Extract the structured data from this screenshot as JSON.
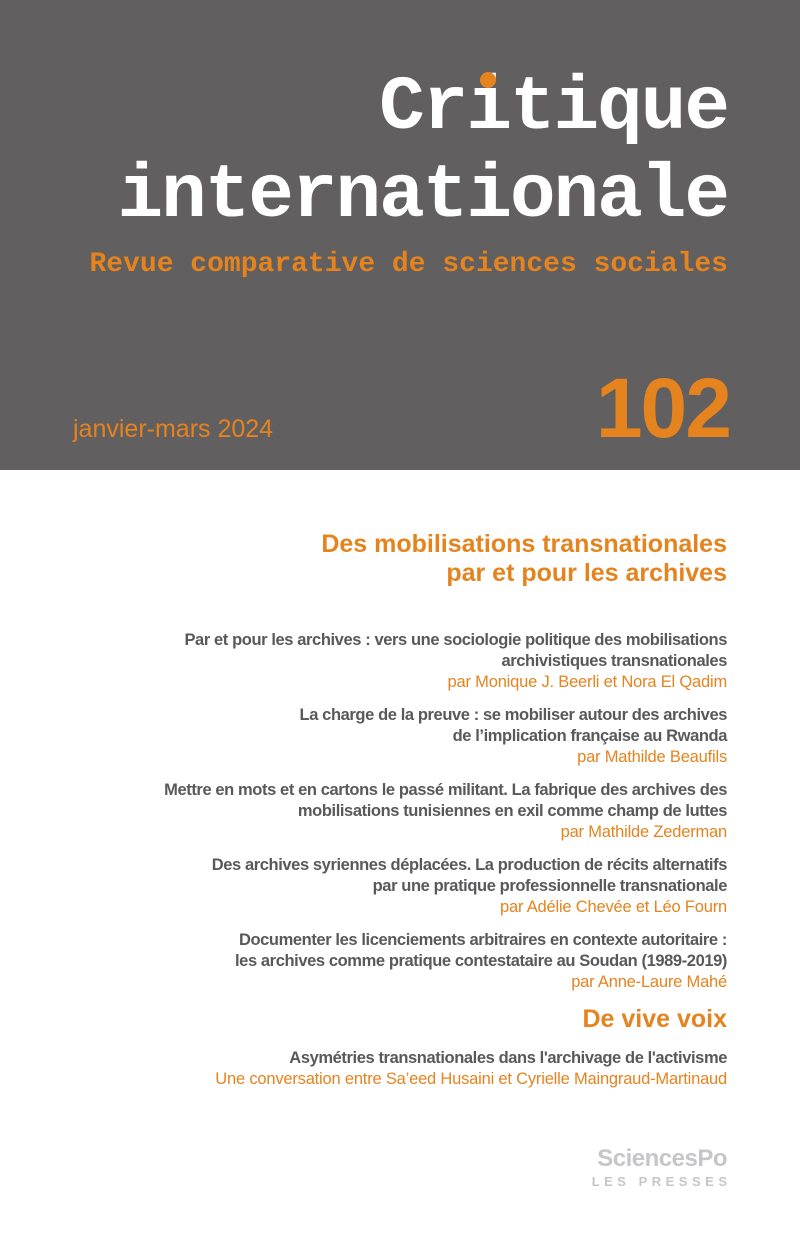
{
  "header": {
    "title": "Critique internationale",
    "title_line1_parts": {
      "pre": "Cr",
      "i": "i",
      "post": "tique"
    },
    "title_line2": "internationale",
    "subtitle": "Revue comparative de sciences sociales",
    "date": "janvier-mars 2024",
    "issue_number": "102",
    "colors": {
      "background": "#615f60",
      "accent": "#e5831e",
      "title": "#ffffff"
    }
  },
  "toc": {
    "dossier_title_lines": [
      "Des mobilisations transnationales",
      "par et pour les archives"
    ],
    "entries": [
      {
        "title_lines": [
          "Par et pour les archives : vers une sociologie politique des mobilisations",
          "archivistiques transnationales"
        ],
        "author": "par Monique J. Beerli et Nora El Qadim"
      },
      {
        "title_lines": [
          "La charge de la preuve : se mobiliser autour des archives",
          "de l’implication française au Rwanda"
        ],
        "author": "par Mathilde Beaufils"
      },
      {
        "title_lines": [
          "Mettre en mots et en cartons le passé militant. La fabrique des archives des",
          "mobilisations tunisiennes en exil comme champ de luttes"
        ],
        "author": "par Mathilde Zederman"
      },
      {
        "title_lines": [
          "Des archives syriennes déplacées. La production de récits alternatifs",
          "par une pratique professionnelle transnationale"
        ],
        "author": "par Adélie Chevée et Léo Fourn"
      },
      {
        "title_lines": [
          "Documenter les licenciements arbitraires en contexte autoritaire :",
          "les archives comme pratique contestataire au Soudan (1989-2019)"
        ],
        "author": "par Anne-Laure Mahé"
      }
    ],
    "section2_title": "De vive voix",
    "conversation": {
      "title": "Asymétries transnationales dans l'archivage de l'activisme",
      "byline": "Une conversation entre Sa’eed Husaini et  Cyrielle Maingraud-Martinaud"
    }
  },
  "publisher": {
    "name": "SciencesPo",
    "imprint": "LES PRESSES"
  }
}
